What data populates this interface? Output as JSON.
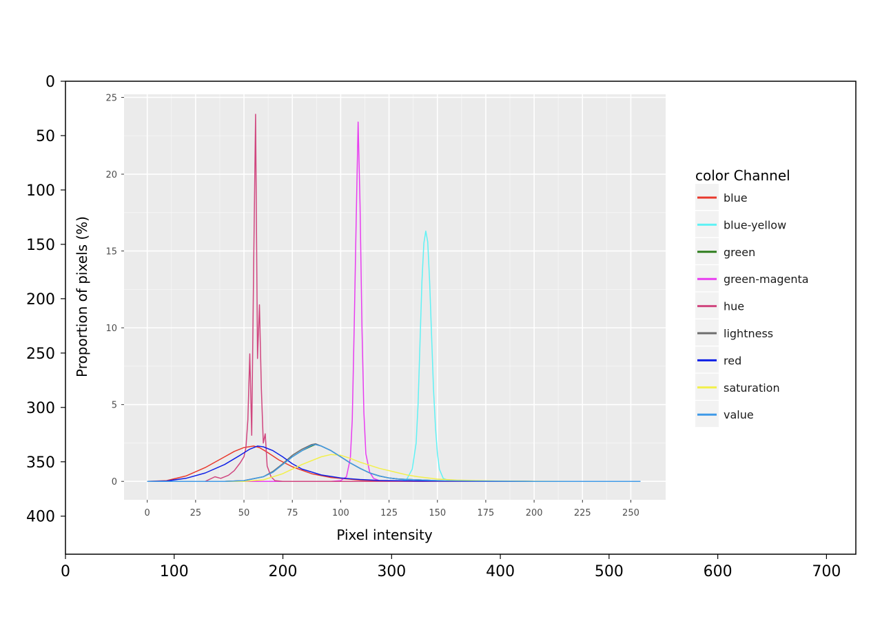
{
  "outer_axes": {
    "x_ticks": [
      "0",
      "100",
      "200",
      "300",
      "400",
      "500",
      "600",
      "700"
    ],
    "y_ticks": [
      "0",
      "50",
      "100",
      "150",
      "200",
      "250",
      "300",
      "350",
      "400"
    ],
    "xlim": [
      0,
      727
    ],
    "ylim": [
      435,
      0
    ]
  },
  "chart_data": {
    "type": "line",
    "title": "",
    "xlabel": "Pixel intensity",
    "ylabel": "Proportion of pixels (%)",
    "xlim": [
      -12,
      268
    ],
    "ylim": [
      -1.2,
      25.2
    ],
    "x_ticks": [
      "0",
      "25",
      "50",
      "75",
      "100",
      "125",
      "150",
      "175",
      "200",
      "225",
      "250"
    ],
    "y_ticks": [
      "0",
      "5",
      "10",
      "15",
      "20",
      "25"
    ],
    "grid": true,
    "legend_title": "color Channel",
    "legend_position": "right",
    "series": [
      {
        "name": "blue",
        "color": "#e8382c",
        "points": [
          [
            0,
            0
          ],
          [
            10,
            0.05
          ],
          [
            20,
            0.35
          ],
          [
            30,
            0.9
          ],
          [
            40,
            1.6
          ],
          [
            45,
            1.95
          ],
          [
            50,
            2.2
          ],
          [
            55,
            2.3
          ],
          [
            58,
            2.2
          ],
          [
            62,
            1.9
          ],
          [
            68,
            1.4
          ],
          [
            75,
            0.95
          ],
          [
            85,
            0.5
          ],
          [
            95,
            0.25
          ],
          [
            110,
            0.08
          ],
          [
            130,
            0.02
          ],
          [
            160,
            0
          ],
          [
            255,
            0
          ]
        ]
      },
      {
        "name": "blue-yellow",
        "color": "#5ff2f5",
        "points": [
          [
            0,
            0
          ],
          [
            130,
            0
          ],
          [
            134,
            0.1
          ],
          [
            137,
            0.8
          ],
          [
            139,
            2.5
          ],
          [
            140,
            5
          ],
          [
            141,
            9
          ],
          [
            142,
            13
          ],
          [
            143,
            15.5
          ],
          [
            144,
            16.3
          ],
          [
            145,
            15.6
          ],
          [
            146,
            13
          ],
          [
            147,
            9.5
          ],
          [
            148,
            6
          ],
          [
            149,
            3.5
          ],
          [
            150,
            1.8
          ],
          [
            151,
            0.8
          ],
          [
            153,
            0.2
          ],
          [
            156,
            0.05
          ],
          [
            160,
            0
          ],
          [
            255,
            0
          ]
        ]
      },
      {
        "name": "green",
        "color": "#2e7d1d",
        "points": [
          [
            0,
            0
          ],
          [
            40,
            0
          ],
          [
            50,
            0.05
          ],
          [
            60,
            0.3
          ],
          [
            65,
            0.6
          ],
          [
            70,
            1.1
          ],
          [
            75,
            1.6
          ],
          [
            80,
            2.0
          ],
          [
            85,
            2.3
          ],
          [
            87,
            2.4
          ],
          [
            90,
            2.3
          ],
          [
            95,
            2.0
          ],
          [
            100,
            1.6
          ],
          [
            105,
            1.2
          ],
          [
            110,
            0.85
          ],
          [
            115,
            0.55
          ],
          [
            120,
            0.35
          ],
          [
            125,
            0.22
          ],
          [
            130,
            0.15
          ],
          [
            140,
            0.1
          ],
          [
            150,
            0.05
          ],
          [
            170,
            0.02
          ],
          [
            200,
            0
          ],
          [
            255,
            0
          ]
        ]
      },
      {
        "name": "green-magenta",
        "color": "#e83cf0",
        "points": [
          [
            0,
            0
          ],
          [
            95,
            0
          ],
          [
            100,
            0.05
          ],
          [
            103,
            0.3
          ],
          [
            105,
            1.5
          ],
          [
            106,
            4
          ],
          [
            107,
            10
          ],
          [
            108,
            17
          ],
          [
            109,
            23.4
          ],
          [
            110,
            18
          ],
          [
            111,
            10
          ],
          [
            112,
            4.5
          ],
          [
            113,
            1.8
          ],
          [
            115,
            0.6
          ],
          [
            117,
            0.2
          ],
          [
            120,
            0.05
          ],
          [
            125,
            0
          ],
          [
            255,
            0
          ]
        ]
      },
      {
        "name": "hue",
        "color": "#d0457e",
        "points": [
          [
            0,
            0
          ],
          [
            30,
            0
          ],
          [
            35,
            0.3
          ],
          [
            38,
            0.2
          ],
          [
            42,
            0.4
          ],
          [
            45,
            0.7
          ],
          [
            48,
            1.2
          ],
          [
            50,
            1.6
          ],
          [
            51,
            2.2
          ],
          [
            52,
            4
          ],
          [
            53,
            8.3
          ],
          [
            54,
            3
          ],
          [
            55,
            14
          ],
          [
            56,
            23.9
          ],
          [
            57,
            8
          ],
          [
            58,
            11.5
          ],
          [
            59,
            6
          ],
          [
            60,
            2.5
          ],
          [
            61,
            3.1
          ],
          [
            62,
            1
          ],
          [
            64,
            0.3
          ],
          [
            66,
            0.05
          ],
          [
            70,
            0
          ],
          [
            255,
            0
          ]
        ]
      },
      {
        "name": "lightness",
        "color": "#6d6d6d",
        "points": [
          [
            0,
            0
          ],
          [
            40,
            0
          ],
          [
            50,
            0.05
          ],
          [
            60,
            0.3
          ],
          [
            65,
            0.65
          ],
          [
            70,
            1.15
          ],
          [
            75,
            1.7
          ],
          [
            80,
            2.1
          ],
          [
            85,
            2.4
          ],
          [
            87,
            2.45
          ],
          [
            90,
            2.3
          ],
          [
            95,
            2.0
          ],
          [
            100,
            1.6
          ],
          [
            105,
            1.2
          ],
          [
            110,
            0.85
          ],
          [
            115,
            0.55
          ],
          [
            120,
            0.35
          ],
          [
            125,
            0.22
          ],
          [
            130,
            0.15
          ],
          [
            140,
            0.1
          ],
          [
            150,
            0.05
          ],
          [
            170,
            0.02
          ],
          [
            200,
            0
          ],
          [
            255,
            0
          ]
        ]
      },
      {
        "name": "red",
        "color": "#0d1fe6",
        "points": [
          [
            0,
            0
          ],
          [
            10,
            0.03
          ],
          [
            20,
            0.2
          ],
          [
            30,
            0.55
          ],
          [
            40,
            1.1
          ],
          [
            48,
            1.7
          ],
          [
            53,
            2.1
          ],
          [
            57,
            2.3
          ],
          [
            60,
            2.25
          ],
          [
            65,
            2.0
          ],
          [
            70,
            1.6
          ],
          [
            75,
            1.15
          ],
          [
            80,
            0.8
          ],
          [
            90,
            0.42
          ],
          [
            100,
            0.22
          ],
          [
            110,
            0.12
          ],
          [
            120,
            0.06
          ],
          [
            140,
            0.03
          ],
          [
            170,
            0.01
          ],
          [
            200,
            0
          ],
          [
            255,
            0
          ]
        ]
      },
      {
        "name": "saturation",
        "color": "#f2f04a",
        "points": [
          [
            0,
            0
          ],
          [
            50,
            0
          ],
          [
            60,
            0.1
          ],
          [
            70,
            0.5
          ],
          [
            80,
            1.1
          ],
          [
            90,
            1.6
          ],
          [
            95,
            1.75
          ],
          [
            100,
            1.7
          ],
          [
            105,
            1.5
          ],
          [
            110,
            1.25
          ],
          [
            115,
            1.05
          ],
          [
            120,
            0.85
          ],
          [
            125,
            0.7
          ],
          [
            130,
            0.55
          ],
          [
            135,
            0.4
          ],
          [
            140,
            0.3
          ],
          [
            150,
            0.15
          ],
          [
            160,
            0.08
          ],
          [
            180,
            0.03
          ],
          [
            200,
            0.01
          ],
          [
            220,
            0
          ],
          [
            255,
            0
          ]
        ]
      },
      {
        "name": "value",
        "color": "#3f9ae8",
        "points": [
          [
            0,
            0
          ],
          [
            40,
            0
          ],
          [
            50,
            0.05
          ],
          [
            60,
            0.3
          ],
          [
            65,
            0.6
          ],
          [
            70,
            1.1
          ],
          [
            75,
            1.6
          ],
          [
            80,
            2.0
          ],
          [
            85,
            2.35
          ],
          [
            87,
            2.4
          ],
          [
            90,
            2.3
          ],
          [
            95,
            2.0
          ],
          [
            100,
            1.6
          ],
          [
            105,
            1.2
          ],
          [
            110,
            0.85
          ],
          [
            115,
            0.55
          ],
          [
            120,
            0.35
          ],
          [
            125,
            0.22
          ],
          [
            130,
            0.15
          ],
          [
            140,
            0.1
          ],
          [
            150,
            0.05
          ],
          [
            170,
            0.02
          ],
          [
            200,
            0
          ],
          [
            255,
            0
          ]
        ]
      }
    ]
  }
}
